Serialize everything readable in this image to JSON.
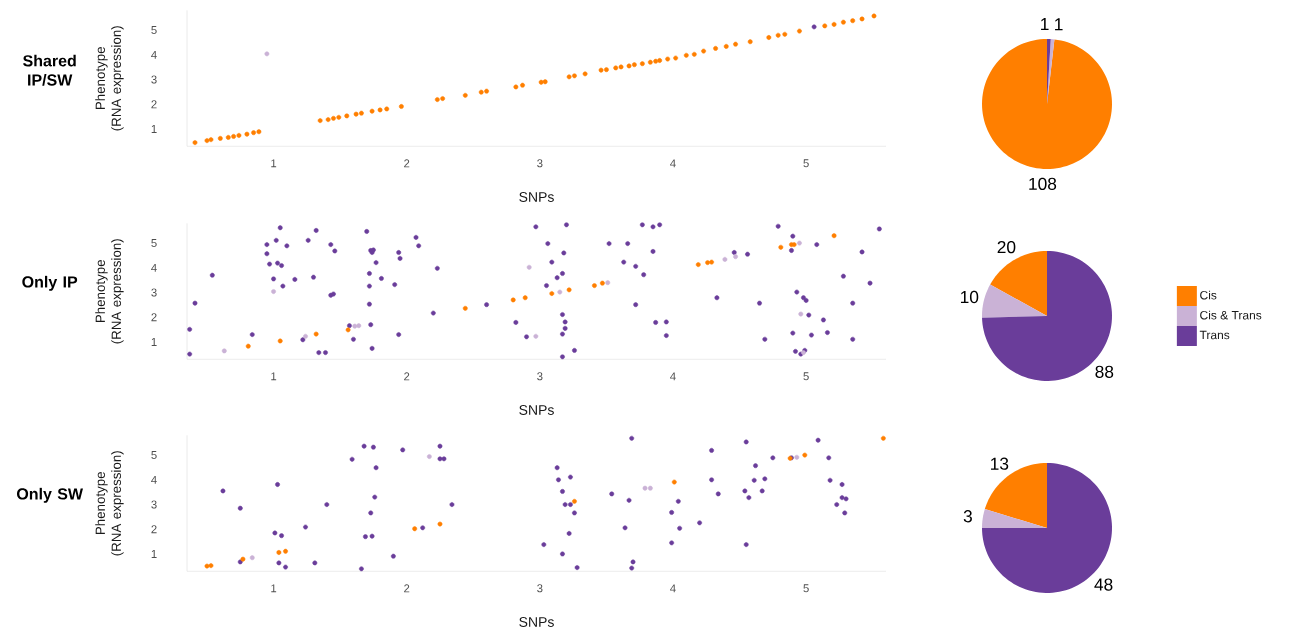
{
  "chart_data": [
    {
      "type": "scatter",
      "title": "Shared IP/SW",
      "xlabel": "SNPs",
      "ylabel": "Phenotype (RNA expression)",
      "xlim": [
        0.35,
        5.6
      ],
      "ylim": [
        0.3,
        5.8
      ],
      "xticks": [
        1,
        2,
        3,
        4,
        5
      ],
      "yticks": [
        1,
        2,
        3,
        4,
        5
      ],
      "marker": "circle",
      "series": [
        {
          "color": "#ff7f00",
          "x": [
            0.41,
            0.5,
            0.53,
            0.6,
            0.66,
            0.7,
            0.74,
            0.8,
            0.85,
            0.89,
            1.35,
            1.41,
            1.45,
            1.49,
            1.55,
            1.62,
            1.66,
            1.74,
            1.8,
            1.85,
            1.96,
            2.23,
            2.27,
            2.44,
            2.56,
            2.6,
            2.82,
            2.87,
            3.01,
            3.04,
            3.22,
            3.26,
            3.34,
            3.46,
            3.5,
            3.57,
            3.61,
            3.67,
            3.71,
            3.77,
            3.83,
            3.87,
            3.9,
            3.96,
            4.02,
            4.1,
            4.16,
            4.23,
            4.32,
            4.4,
            4.47,
            4.58,
            4.72,
            4.79,
            4.84,
            4.95,
            5.14,
            5.21,
            5.28,
            5.35,
            5.42,
            5.51
          ],
          "values": [
            0.45,
            0.53,
            0.57,
            0.62,
            0.66,
            0.7,
            0.74,
            0.79,
            0.85,
            0.89,
            1.34,
            1.38,
            1.43,
            1.47,
            1.53,
            1.6,
            1.64,
            1.72,
            1.77,
            1.81,
            1.91,
            2.19,
            2.23,
            2.36,
            2.49,
            2.53,
            2.7,
            2.77,
            2.89,
            2.91,
            3.11,
            3.15,
            3.23,
            3.38,
            3.4,
            3.47,
            3.51,
            3.55,
            3.6,
            3.64,
            3.7,
            3.74,
            3.77,
            3.83,
            3.87,
            3.98,
            4.02,
            4.15,
            4.26,
            4.34,
            4.43,
            4.53,
            4.7,
            4.79,
            4.83,
            4.96,
            5.17,
            5.23,
            5.32,
            5.38,
            5.45,
            5.57
          ]
        },
        {
          "color": "#cab2d6",
          "x": [
            0.95
          ],
          "values": [
            4.04
          ]
        },
        {
          "color": "#6a3d9a",
          "x": [
            5.06
          ],
          "values": [
            5.13
          ]
        }
      ]
    },
    {
      "type": "pie",
      "categories": [
        null,
        null,
        null
      ],
      "values": [
        108,
        1,
        1
      ],
      "colors": [
        "#ff7f00",
        "#cab2d6",
        "#6a3d9a"
      ],
      "data_labels": true
    },
    {
      "type": "scatter",
      "title": "Only IP",
      "xlabel": "SNPs",
      "ylabel": "Phenotype (RNA expression)",
      "xlim": [
        0.35,
        5.6
      ],
      "ylim": [
        0.3,
        5.8
      ],
      "xticks": [
        1,
        2,
        3,
        4,
        5
      ],
      "yticks": [
        1,
        2,
        3,
        4,
        5
      ],
      "marker": "circle",
      "series": [
        {
          "color": "#ff7f00",
          "x": [
            0.81,
            1.05,
            1.32,
            1.56,
            2.44,
            2.8,
            2.89,
            3.09,
            3.22,
            3.41,
            3.47,
            4.19,
            4.26,
            4.29,
            4.81,
            4.89,
            4.91,
            5.21
          ],
          "values": [
            0.83,
            1.04,
            1.32,
            1.49,
            2.36,
            2.7,
            2.79,
            2.96,
            3.11,
            3.28,
            3.38,
            4.13,
            4.21,
            4.23,
            4.83,
            4.94,
            4.94,
            5.3
          ]
        },
        {
          "color": "#cab2d6",
          "x": [
            0.63,
            1.0,
            1.24,
            1.61,
            1.64,
            2.92,
            2.97,
            3.15,
            3.51,
            4.39,
            4.47,
            4.95,
            4.96,
            4.98
          ],
          "values": [
            0.64,
            3.04,
            1.23,
            1.64,
            1.66,
            4.02,
            1.23,
            3.02,
            3.4,
            4.34,
            4.45,
            5.0,
            2.13,
            0.57
          ]
        },
        {
          "color": "#6a3d9a",
          "x": [
            0.37,
            0.41,
            0.37,
            0.54,
            0.84,
            0.95,
            0.95,
            0.97,
            1.0,
            1.02,
            1.05,
            1.03,
            1.06,
            1.07,
            1.1,
            1.16,
            1.26,
            1.3,
            1.32,
            1.22,
            1.34,
            1.39,
            1.43,
            1.45,
            1.43,
            1.46,
            1.57,
            1.6,
            1.7,
            1.73,
            1.74,
            1.75,
            1.72,
            1.72,
            1.73,
            1.74,
            1.77,
            1.81,
            1.72,
            1.91,
            1.94,
            1.94,
            1.95,
            2.07,
            2.09,
            2.23,
            2.2,
            2.6,
            2.82,
            2.9,
            2.97,
            3.06,
            3.09,
            3.05,
            3.13,
            3.17,
            3.18,
            3.17,
            3.19,
            3.19,
            3.17,
            3.17,
            3.2,
            3.26,
            3.52,
            3.66,
            3.63,
            3.72,
            3.78,
            3.72,
            3.77,
            3.85,
            3.9,
            3.85,
            3.87,
            3.95,
            3.95,
            4.33,
            4.46,
            4.56,
            4.65,
            4.69,
            4.79,
            4.9,
            4.9,
            4.89,
            4.93,
            4.98,
            5.0,
            5.02,
            4.92,
            4.96,
            4.99,
            5.04,
            5.08,
            5.13,
            5.16,
            5.28,
            5.35,
            5.35,
            5.42,
            5.48,
            5.55
          ],
          "values": [
            1.51,
            2.57,
            0.51,
            3.7,
            1.3,
            4.94,
            4.57,
            4.15,
            3.55,
            5.11,
            5.62,
            4.19,
            4.09,
            3.26,
            4.89,
            3.53,
            5.11,
            3.62,
            5.51,
            1.09,
            0.57,
            0.57,
            2.89,
            2.94,
            4.94,
            4.68,
            1.66,
            1.11,
            5.47,
            4.7,
            4.62,
            4.72,
            3.77,
            2.53,
            1.7,
            0.74,
            4.21,
            3.57,
            3.26,
            3.32,
            1.3,
            4.62,
            4.38,
            5.23,
            4.89,
            3.98,
            2.17,
            2.51,
            1.79,
            1.21,
            5.66,
            4.98,
            4.23,
            3.28,
            3.6,
            3.77,
            4.6,
            2.11,
            1.81,
            1.55,
            1.32,
            0.4,
            5.74,
            0.66,
            4.98,
            4.98,
            4.23,
            4.06,
            3.72,
            2.51,
            5.74,
            5.66,
            5.74,
            4.66,
            1.79,
            1.81,
            1.26,
            2.79,
            4.62,
            4.55,
            2.57,
            1.11,
            5.68,
            5.28,
            1.36,
            4.7,
            3.02,
            2.79,
            2.68,
            2.09,
            0.62,
            0.51,
            0.66,
            1.28,
            4.94,
            1.89,
            1.38,
            3.66,
            2.57,
            1.11,
            4.64,
            3.38,
            5.57
          ]
        }
      ]
    },
    {
      "type": "pie",
      "categories": [
        "Cis",
        "Cis & Trans",
        "Trans"
      ],
      "values": [
        20,
        10,
        88
      ],
      "colors": [
        "#ff7f00",
        "#cab2d6",
        "#6a3d9a"
      ],
      "data_labels": true,
      "legend": "right"
    },
    {
      "type": "scatter",
      "title": "Only SW",
      "xlabel": "SNPs",
      "ylabel": "Phenotype (RNA expression)",
      "xlim": [
        0.35,
        5.6
      ],
      "ylim": [
        0.3,
        5.8
      ],
      "xticks": [
        1,
        2,
        3,
        4,
        5
      ],
      "yticks": [
        1,
        2,
        3,
        4,
        5
      ],
      "marker": "circle",
      "series": [
        {
          "color": "#ff7f00",
          "x": [
            0.5,
            0.53,
            0.77,
            1.04,
            1.09,
            2.06,
            2.25,
            3.26,
            4.01,
            4.88,
            4.99,
            5.58
          ],
          "values": [
            0.51,
            0.53,
            0.79,
            1.06,
            1.11,
            2.02,
            2.21,
            3.13,
            3.91,
            4.87,
            5.0,
            5.68
          ]
        },
        {
          "color": "#cab2d6",
          "x": [
            0.84,
            2.17,
            3.79,
            3.83,
            4.93
          ],
          "values": [
            0.85,
            4.94,
            3.66,
            3.66,
            4.91
          ]
        },
        {
          "color": "#6a3d9a",
          "x": [
            0.62,
            0.75,
            0.75,
            1.01,
            1.06,
            1.03,
            1.04,
            1.09,
            1.24,
            1.31,
            1.4,
            1.59,
            1.66,
            1.68,
            1.75,
            1.77,
            1.76,
            1.73,
            1.69,
            1.74,
            1.9,
            1.97,
            2.12,
            2.25,
            2.25,
            2.28,
            2.34,
            3.03,
            3.13,
            3.14,
            3.17,
            3.19,
            3.22,
            3.17,
            3.23,
            3.23,
            3.26,
            3.28,
            3.54,
            3.64,
            3.67,
            3.69,
            3.69,
            3.7,
            3.99,
            3.99,
            4.04,
            4.05,
            4.2,
            4.29,
            4.29,
            4.34,
            4.54,
            4.57,
            4.55,
            4.55,
            4.62,
            4.61,
            4.67,
            4.69,
            4.75,
            4.89,
            5.09,
            5.17,
            5.18,
            5.27,
            5.27,
            5.29,
            5.23,
            5.3
          ],
          "values": [
            3.55,
            2.85,
            0.68,
            1.85,
            1.74,
            3.81,
            0.64,
            0.47,
            2.09,
            0.64,
            3.0,
            4.83,
            0.4,
            5.36,
            5.32,
            4.49,
            3.3,
            2.66,
            1.7,
            1.72,
            0.91,
            5.21,
            2.06,
            5.36,
            4.85,
            4.85,
            3.0,
            1.38,
            4.49,
            4.0,
            3.53,
            3.0,
            1.83,
            1.0,
            4.11,
            3.0,
            2.66,
            0.45,
            3.43,
            2.06,
            3.17,
            5.68,
            0.43,
            0.68,
            2.68,
            1.45,
            3.13,
            2.04,
            2.26,
            5.19,
            4.0,
            3.43,
            3.55,
            3.28,
            5.53,
            1.38,
            4.57,
            3.98,
            3.55,
            4.04,
            4.89,
            4.89,
            5.6,
            4.89,
            3.98,
            3.81,
            3.28,
            2.66,
            3.0,
            3.23
          ]
        }
      ]
    },
    {
      "type": "pie",
      "categories": [
        null,
        null,
        null
      ],
      "values": [
        13,
        3,
        48
      ],
      "colors": [
        "#ff7f00",
        "#cab2d6",
        "#6a3d9a"
      ],
      "data_labels": true
    }
  ]
}
